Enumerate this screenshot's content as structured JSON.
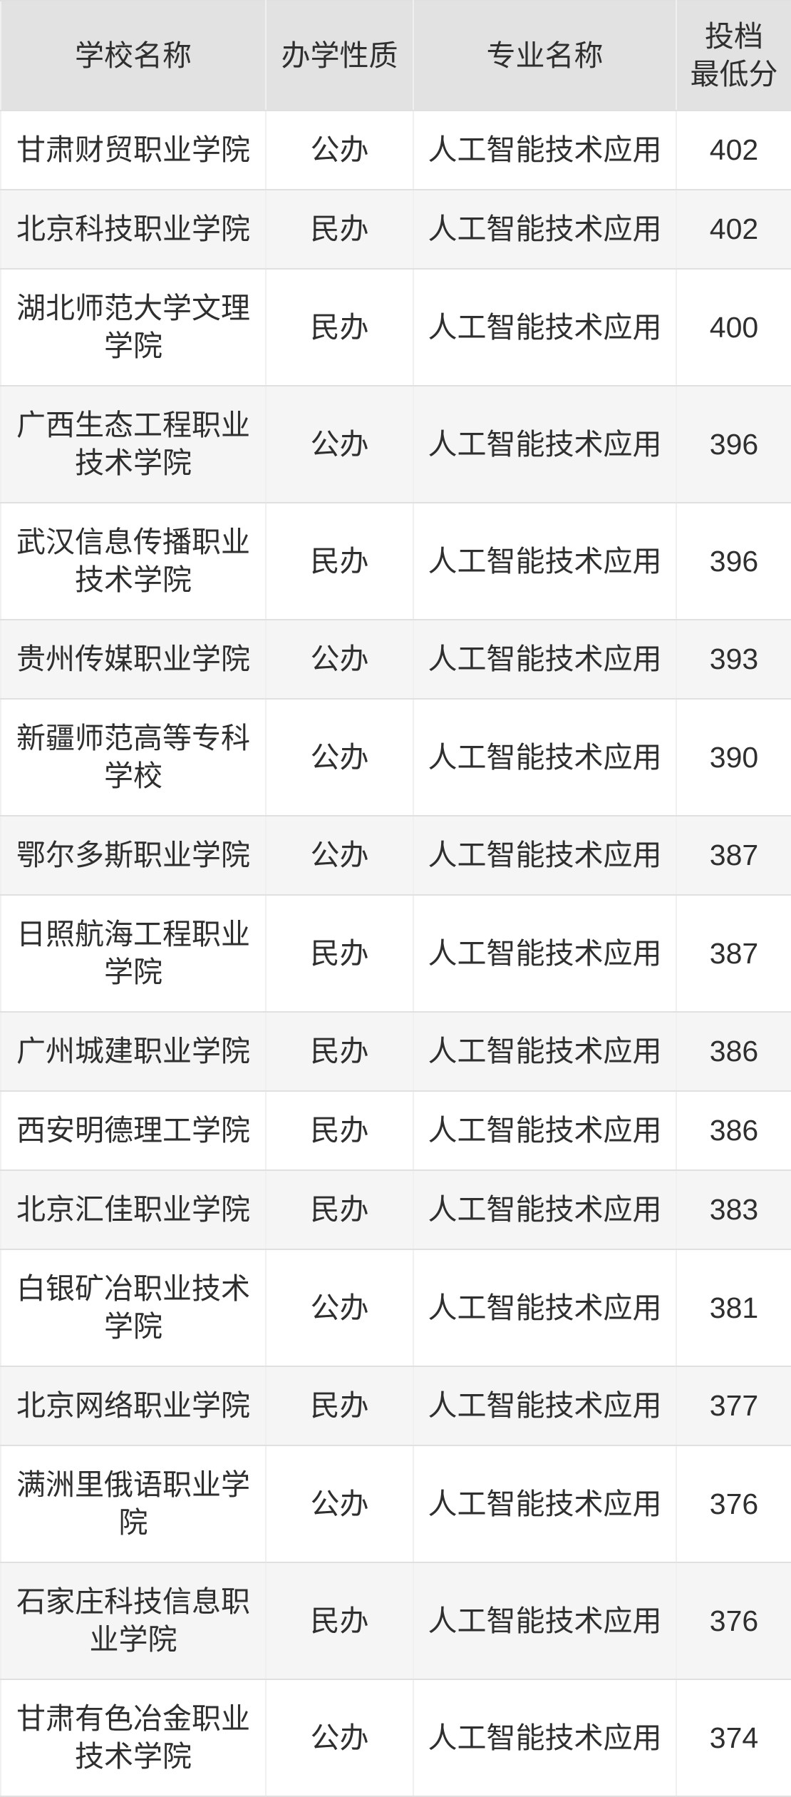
{
  "table": {
    "columns": {
      "school": "学校名称",
      "type": "办学性质",
      "major": "专业名称",
      "score": "投档\n最低分"
    },
    "rows": [
      {
        "school": "甘肃财贸职业学院",
        "type": "公办",
        "major": "人工智能技术应用",
        "score": "402"
      },
      {
        "school": "北京科技职业学院",
        "type": "民办",
        "major": "人工智能技术应用",
        "score": "402"
      },
      {
        "school": "湖北师范大学文理\n学院",
        "type": "民办",
        "major": "人工智能技术应用",
        "score": "400"
      },
      {
        "school": "广西生态工程职业\n技术学院",
        "type": "公办",
        "major": "人工智能技术应用",
        "score": "396"
      },
      {
        "school": "武汉信息传播职业\n技术学院",
        "type": "民办",
        "major": "人工智能技术应用",
        "score": "396"
      },
      {
        "school": "贵州传媒职业学院",
        "type": "公办",
        "major": "人工智能技术应用",
        "score": "393"
      },
      {
        "school": "新疆师范高等专科\n学校",
        "type": "公办",
        "major": "人工智能技术应用",
        "score": "390"
      },
      {
        "school": "鄂尔多斯职业学院",
        "type": "公办",
        "major": "人工智能技术应用",
        "score": "387"
      },
      {
        "school": "日照航海工程职业\n学院",
        "type": "民办",
        "major": "人工智能技术应用",
        "score": "387"
      },
      {
        "school": "广州城建职业学院",
        "type": "民办",
        "major": "人工智能技术应用",
        "score": "386"
      },
      {
        "school": "西安明德理工学院",
        "type": "民办",
        "major": "人工智能技术应用",
        "score": "386"
      },
      {
        "school": "北京汇佳职业学院",
        "type": "民办",
        "major": "人工智能技术应用",
        "score": "383"
      },
      {
        "school": "白银矿冶职业技术\n学院",
        "type": "公办",
        "major": "人工智能技术应用",
        "score": "381"
      },
      {
        "school": "北京网络职业学院",
        "type": "民办",
        "major": "人工智能技术应用",
        "score": "377"
      },
      {
        "school": "满洲里俄语职业学\n院",
        "type": "公办",
        "major": "人工智能技术应用",
        "score": "376"
      },
      {
        "school": "石家庄科技信息职\n业学院",
        "type": "民办",
        "major": "人工智能技术应用",
        "score": "376"
      },
      {
        "school": "甘肃有色冶金职业\n技术学院",
        "type": "公办",
        "major": "人工智能技术应用",
        "score": "374"
      }
    ]
  },
  "colors": {
    "header_bg": "#e2e2e2",
    "stripe_bg": "#f5f5f5",
    "row_border": "#e0e0e0",
    "column_border": "#f0f0f0",
    "text": "#2f2f2f"
  }
}
